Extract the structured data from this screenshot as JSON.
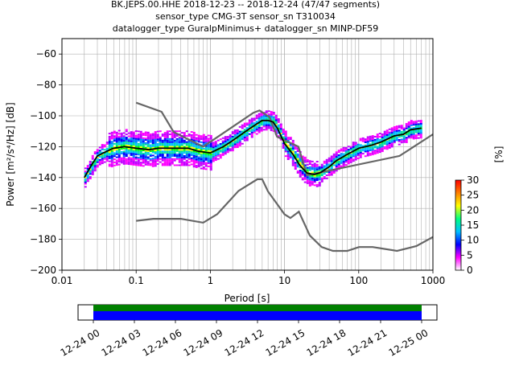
{
  "title_lines": [
    "BK.JEPS.00.HHE   2018-12-23 -- 2018-12-24  (47/47 segments)",
    "sensor_type CMG-3T sensor_sn T310034",
    "datalogger_type GuralpMinimus+ datalogger_sn MINP-DF59"
  ],
  "chart_data": {
    "type": "heatmap",
    "subtype": "probabilistic power spectral density",
    "xlabel": "Period [s]",
    "ylabel": "Power [m²/s⁴/Hz] [dB]",
    "xscale": "log",
    "xlim": [
      0.01,
      1000
    ],
    "ylim": [
      -200,
      -50
    ],
    "xtick_labels": [
      "0.01",
      "0.1",
      "1",
      "10",
      "100",
      "1000"
    ],
    "ytick_labels": [
      "-200",
      "-180",
      "-160",
      "-140",
      "-120",
      "-100",
      "-80",
      "-60"
    ],
    "grid": true,
    "colorbar": {
      "label": "[%]",
      "range": [
        0,
        30
      ],
      "tick_labels": [
        "0",
        "5",
        "10",
        "15",
        "20",
        "25",
        "30"
      ],
      "colormap": [
        "#ffffff",
        "#ff00ff",
        "#0000ff",
        "#00c0ff",
        "#00ff80",
        "#ffff00",
        "#ff8000",
        "#ff0000"
      ]
    },
    "mean_curve": {
      "color": "#000000",
      "periods": [
        0.02,
        0.025,
        0.03,
        0.04,
        0.05,
        0.07,
        0.1,
        0.15,
        0.2,
        0.3,
        0.5,
        0.7,
        1.0,
        1.5,
        2,
        3,
        4,
        5,
        6,
        7,
        8,
        10,
        13,
        16,
        20,
        25,
        30,
        40,
        50,
        70,
        100,
        150,
        200,
        300,
        400,
        500,
        700
      ],
      "db": [
        -140,
        -132,
        -126,
        -123,
        -121,
        -120,
        -121,
        -122,
        -121,
        -121,
        -121,
        -123,
        -124,
        -120,
        -116,
        -110,
        -106,
        -103,
        -103,
        -104,
        -108,
        -118,
        -125,
        -132,
        -137,
        -138,
        -137,
        -133,
        -129,
        -125,
        -121,
        -119,
        -117,
        -113,
        -112,
        -109,
        -108
      ]
    },
    "noise_models": {
      "color": "#666666",
      "high": {
        "periods": [
          0.1,
          0.22,
          0.32,
          0.8,
          3.8,
          4.6,
          6.3,
          7.9,
          15.4,
          20,
          354.8,
          1000
        ],
        "db": [
          -91.5,
          -97.4,
          -110.5,
          -120,
          -98,
          -96.5,
          -101,
          -113.5,
          -120,
          -138.5,
          -126,
          -112
        ]
      },
      "low": {
        "periods": [
          0.1,
          0.17,
          0.4,
          0.8,
          1.24,
          2.4,
          4.3,
          5.0,
          6.0,
          10,
          12,
          15.6,
          21.9,
          31.6,
          45,
          70,
          101,
          154,
          328,
          600,
          1000
        ],
        "db": [
          -168,
          -166.7,
          -166.7,
          -169.2,
          -163.7,
          -148.6,
          -141.1,
          -141.1,
          -149,
          -163.8,
          -166.2,
          -162.1,
          -177.5,
          -185,
          -187.5,
          -187.5,
          -185,
          -185,
          -187.5,
          -184.4,
          -178.5
        ]
      }
    },
    "coverage": {
      "time_tick_labels": [
        "12-24 00",
        "12-24 03",
        "12-24 06",
        "12-24 09",
        "12-24 12",
        "12-24 15",
        "12-24 18",
        "12-24 21",
        "12-25 00"
      ],
      "data_color": "#0000ff",
      "used_color": "#008000",
      "start_hours": 0,
      "end_hours": 24
    }
  }
}
